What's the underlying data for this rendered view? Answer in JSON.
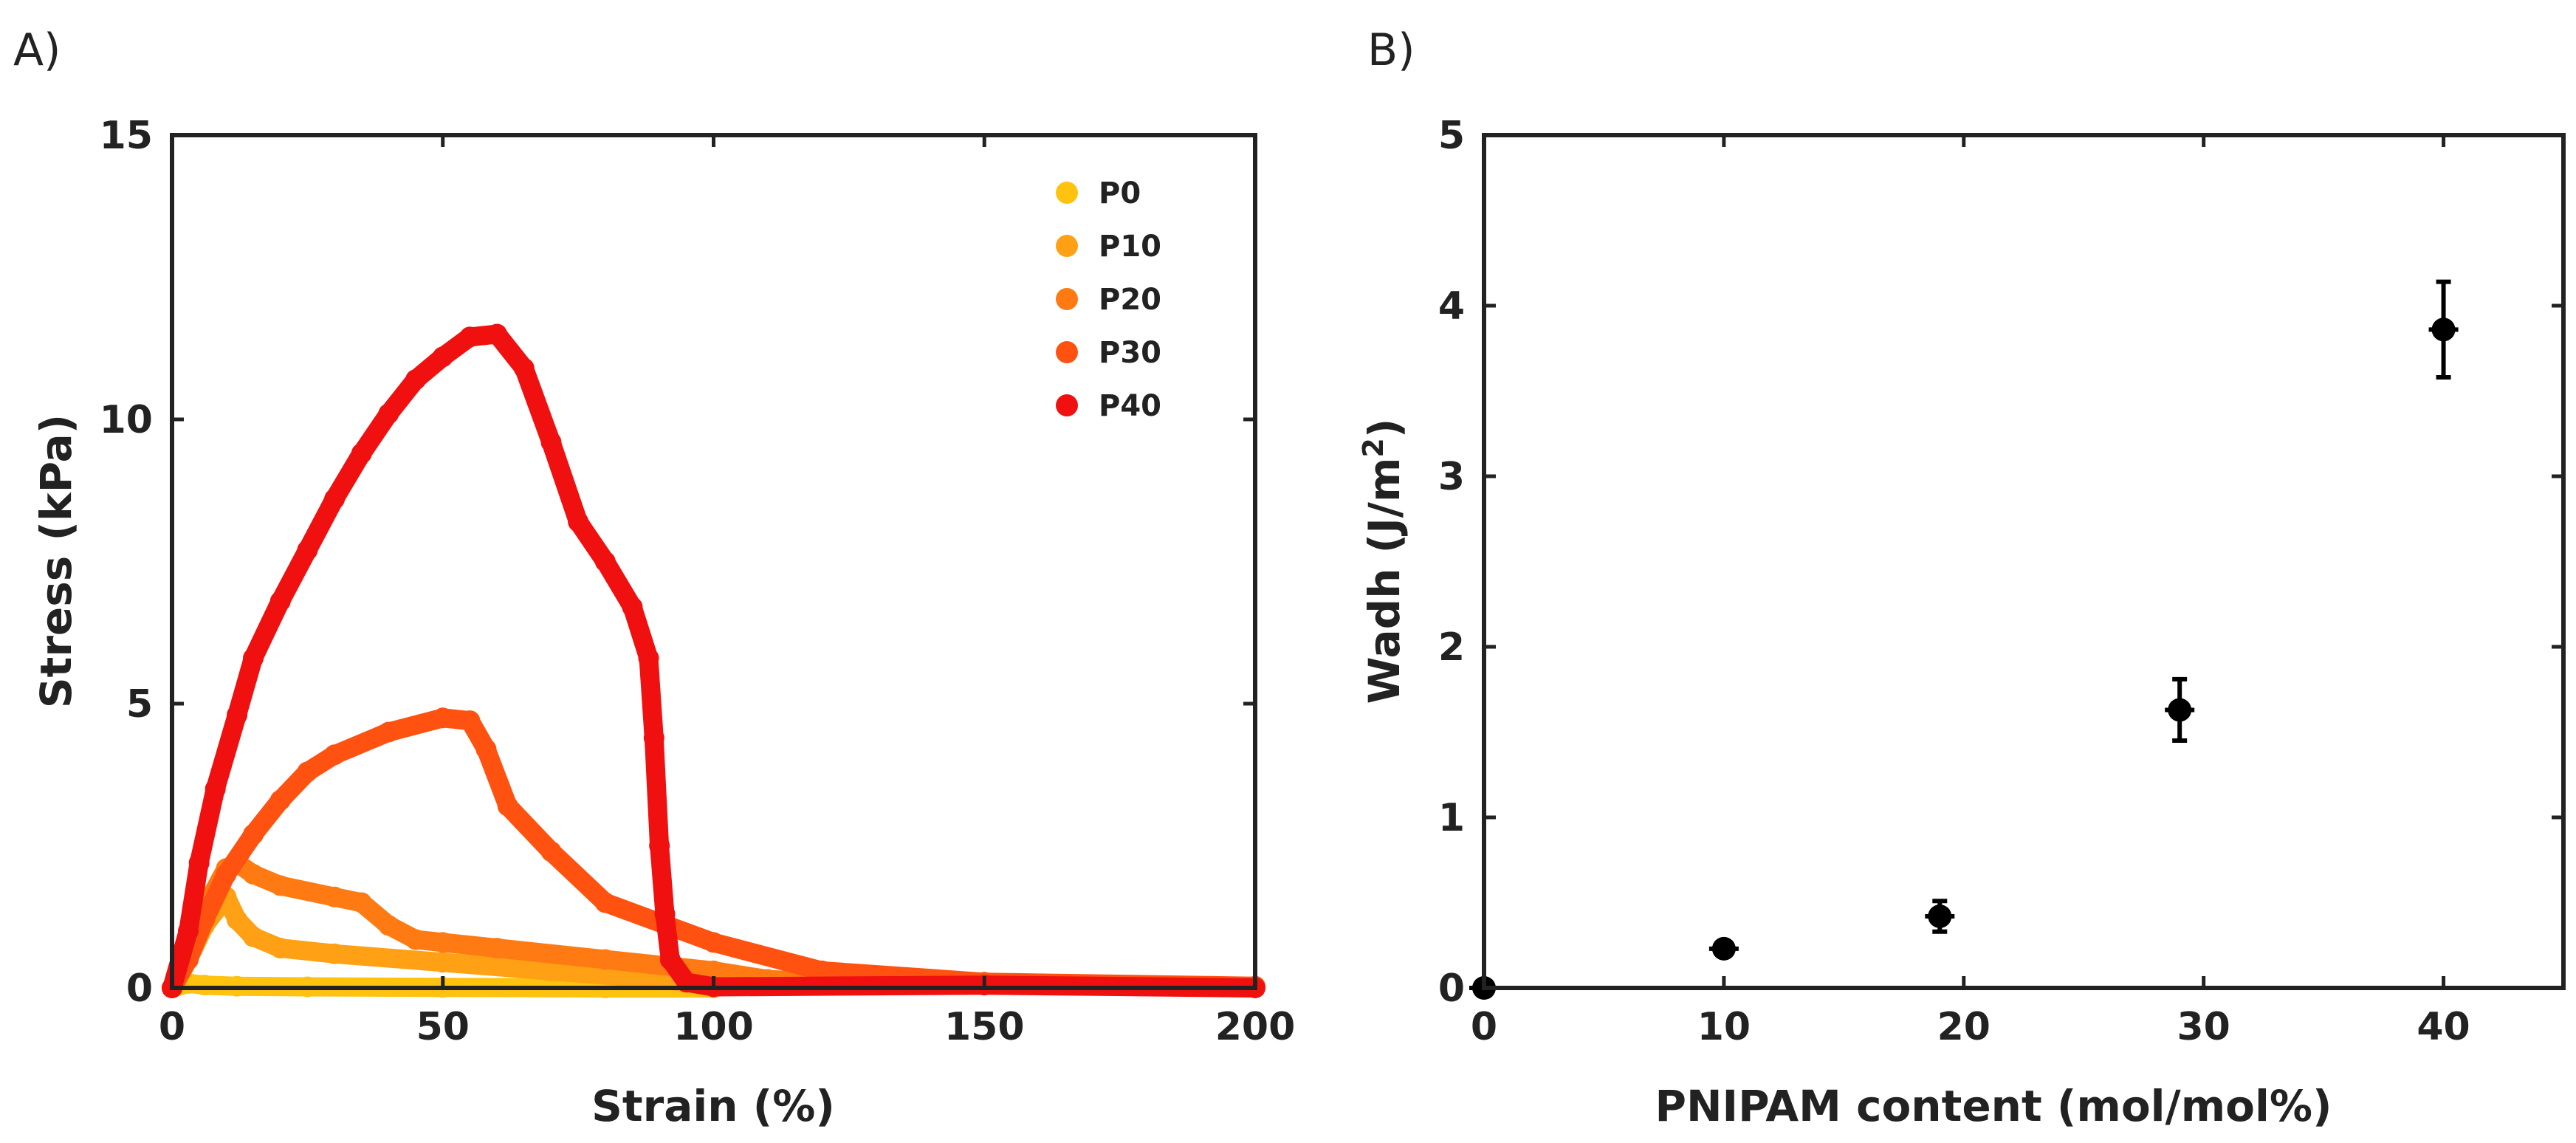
{
  "chart_data": [
    {
      "panel_label": "A)",
      "type": "scatter",
      "xlabel": "Strain (%)",
      "ylabel": "Stress (kPa)",
      "xlim": [
        0,
        200
      ],
      "ylim": [
        0,
        15
      ],
      "xticks": [
        0,
        50,
        100,
        150,
        200
      ],
      "yticks": [
        0,
        5,
        10,
        15
      ],
      "legend_position": "top-right",
      "series": [
        {
          "name": "P0",
          "color": "#FFC20E",
          "x": [
            0,
            3,
            6,
            12,
            25,
            50,
            80,
            100
          ],
          "y": [
            0,
            0.08,
            0.05,
            0.03,
            0.02,
            0.01,
            0.0,
            0.0
          ]
        },
        {
          "name": "P10",
          "color": "#FFA015",
          "x": [
            0,
            3,
            6,
            10,
            12,
            15,
            20,
            30,
            50,
            70,
            90,
            100
          ],
          "y": [
            0,
            0.5,
            1.1,
            1.6,
            1.2,
            0.9,
            0.7,
            0.6,
            0.45,
            0.3,
            0.15,
            0.05
          ]
        },
        {
          "name": "P20",
          "color": "#FF7A12",
          "x": [
            0,
            3,
            6,
            10,
            12,
            15,
            20,
            30,
            35,
            40,
            45,
            50,
            60,
            80,
            100,
            110,
            130
          ],
          "y": [
            0,
            0.6,
            1.4,
            2.1,
            2.2,
            2.0,
            1.8,
            1.6,
            1.5,
            1.1,
            0.85,
            0.8,
            0.7,
            0.5,
            0.3,
            0.15,
            0.05
          ]
        },
        {
          "name": "P30",
          "color": "#FF5210",
          "x": [
            0,
            3,
            6,
            10,
            15,
            20,
            25,
            30,
            40,
            50,
            55,
            58,
            62,
            70,
            80,
            100,
            120,
            150,
            200
          ],
          "y": [
            0,
            0.5,
            1.2,
            2.0,
            2.7,
            3.3,
            3.8,
            4.1,
            4.5,
            4.75,
            4.7,
            4.2,
            3.2,
            2.4,
            1.5,
            0.8,
            0.3,
            0.1,
            0.03
          ]
        },
        {
          "name": "P40",
          "color": "#F01010",
          "x": [
            0,
            3,
            5,
            8,
            12,
            15,
            20,
            25,
            30,
            35,
            40,
            45,
            50,
            55,
            60,
            65,
            70,
            75,
            80,
            85,
            88,
            89,
            90,
            91,
            92,
            95,
            100,
            150,
            200
          ],
          "y": [
            0,
            1.0,
            2.2,
            3.5,
            4.8,
            5.8,
            6.8,
            7.7,
            8.6,
            9.4,
            10.1,
            10.7,
            11.1,
            11.45,
            11.5,
            10.9,
            9.6,
            8.2,
            7.5,
            6.7,
            5.8,
            4.4,
            2.5,
            1.3,
            0.5,
            0.1,
            0.02,
            0.05,
            0.0
          ]
        }
      ]
    },
    {
      "panel_label": "B)",
      "type": "scatter",
      "xlabel": "PNIPAM content  (mol/mol%)",
      "ylabel_main": "Wadh",
      "ylabel_unit_prefix": "(J/m",
      "ylabel_unit_sup": "2",
      "ylabel_unit_suffix": ")",
      "xlim": [
        0,
        45
      ],
      "ylim": [
        0,
        5
      ],
      "xticks": [
        0,
        10,
        20,
        30,
        40
      ],
      "yticks": [
        0,
        1,
        2,
        3,
        4,
        5
      ],
      "points": [
        {
          "x": 0,
          "y": 0.0,
          "err": 0.03
        },
        {
          "x": 10,
          "y": 0.23,
          "err": 0.04
        },
        {
          "x": 19,
          "y": 0.42,
          "err": 0.09
        },
        {
          "x": 29,
          "y": 1.63,
          "err": 0.18
        },
        {
          "x": 40,
          "y": 3.86,
          "err": 0.28
        }
      ]
    }
  ]
}
